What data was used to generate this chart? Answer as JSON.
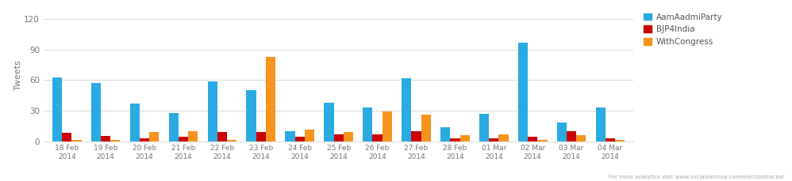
{
  "dates": [
    "18 Feb\n2014",
    "19 Feb\n2014",
    "20 Feb\n2014",
    "21 Feb\n2014",
    "22 Feb\n2014",
    "23 Feb\n2014",
    "24 Feb\n2014",
    "25 Feb\n2014",
    "26 Feb\n2014",
    "27 Feb\n2014",
    "28 Feb\n2014",
    "01 Mar\n2014",
    "02 Mar\n2014",
    "03 Mar\n2014",
    "04 Mar\n2014"
  ],
  "aap": [
    63,
    57,
    37,
    28,
    59,
    50,
    10,
    38,
    33,
    62,
    14,
    27,
    97,
    18,
    33
  ],
  "bjp": [
    8,
    5,
    3,
    4,
    9,
    9,
    4,
    7,
    7,
    10,
    3,
    3,
    4,
    10,
    3
  ],
  "congress": [
    1,
    1,
    9,
    10,
    1,
    83,
    11,
    9,
    29,
    26,
    6,
    7,
    1,
    6,
    1
  ],
  "aap_color": "#29ABE2",
  "bjp_color": "#CC0000",
  "congress_color": "#F7941D",
  "ylabel": "Tweets",
  "yticks": [
    0,
    30,
    60,
    90,
    120
  ],
  "ylim": [
    0,
    130
  ],
  "background_color": "#FFFFFF",
  "grid_color": "#DDDDDD",
  "legend_labels": [
    "AamAadmiParty",
    "BJP4India",
    "WithCongress"
  ],
  "bar_width": 0.25,
  "watermark": "For more analytics visit www.socialsamosa.com/electiontracker"
}
